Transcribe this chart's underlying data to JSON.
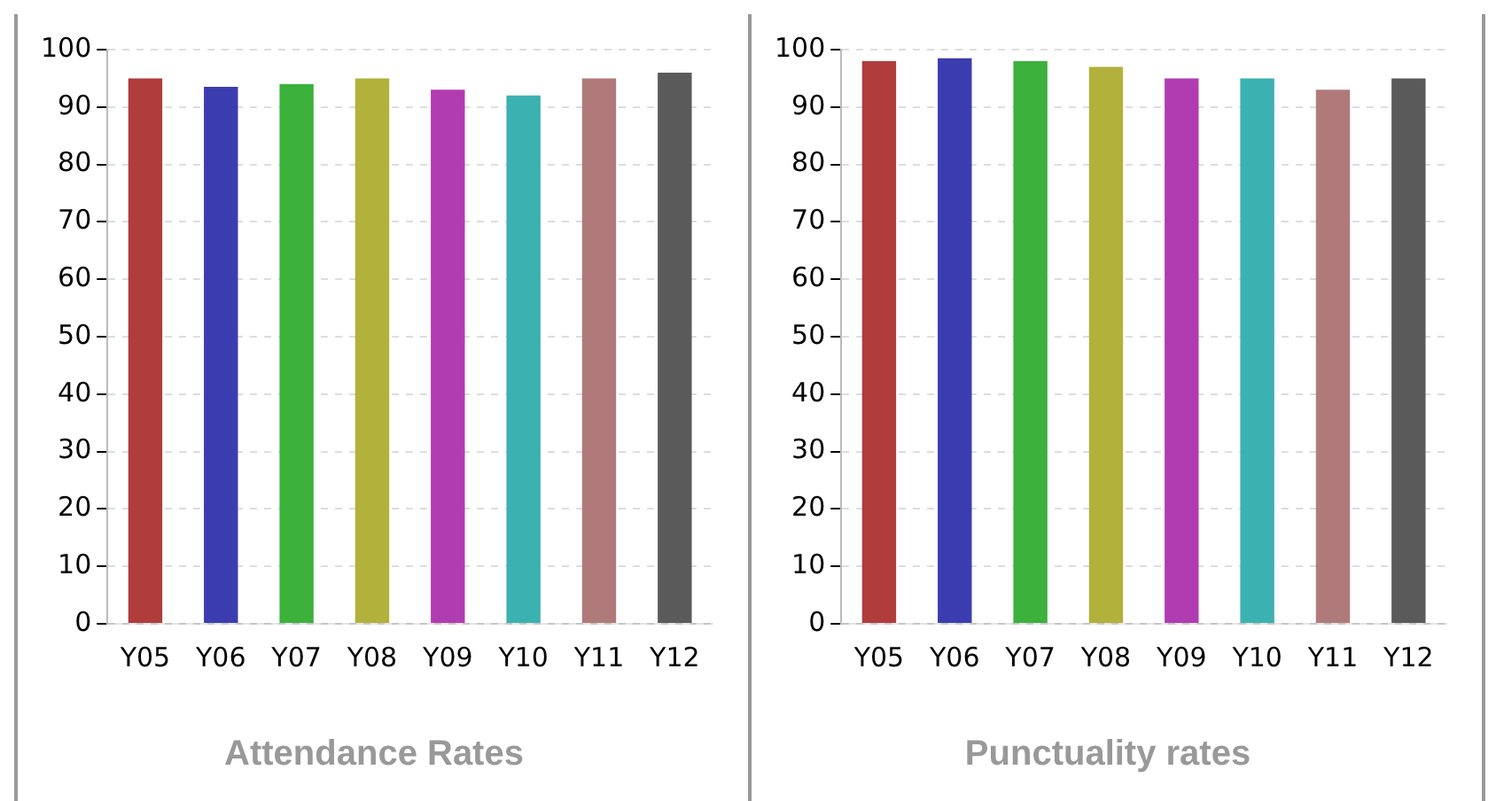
{
  "chart_data": [
    {
      "type": "bar",
      "title": "Attendance Rates",
      "categories": [
        "Y05",
        "Y06",
        "Y07",
        "Y08",
        "Y09",
        "Y10",
        "Y11",
        "Y12"
      ],
      "values": [
        95,
        93.5,
        94,
        95,
        93,
        92,
        95,
        96
      ],
      "colors": [
        "#b13c3c",
        "#3c3cb1",
        "#3cb13c",
        "#b1b13c",
        "#b13cb1",
        "#3cb1b1",
        "#b17a7a",
        "#5a5a5a"
      ],
      "ylim": [
        0,
        100
      ],
      "yticks": [
        0,
        10,
        20,
        30,
        40,
        50,
        60,
        70,
        80,
        90,
        100
      ],
      "grid": "y",
      "legend": false
    },
    {
      "type": "bar",
      "title": "Punctuality rates",
      "categories": [
        "Y05",
        "Y06",
        "Y07",
        "Y08",
        "Y09",
        "Y10",
        "Y11",
        "Y12"
      ],
      "values": [
        98,
        98.5,
        98,
        97,
        95,
        95,
        93,
        95
      ],
      "colors": [
        "#b13c3c",
        "#3c3cb1",
        "#3cb13c",
        "#b1b13c",
        "#b13cb1",
        "#3cb1b1",
        "#b17a7a",
        "#5a5a5a"
      ],
      "ylim": [
        0,
        100
      ],
      "yticks": [
        0,
        10,
        20,
        30,
        40,
        50,
        60,
        70,
        80,
        90,
        100
      ],
      "grid": "y",
      "legend": false
    }
  ]
}
